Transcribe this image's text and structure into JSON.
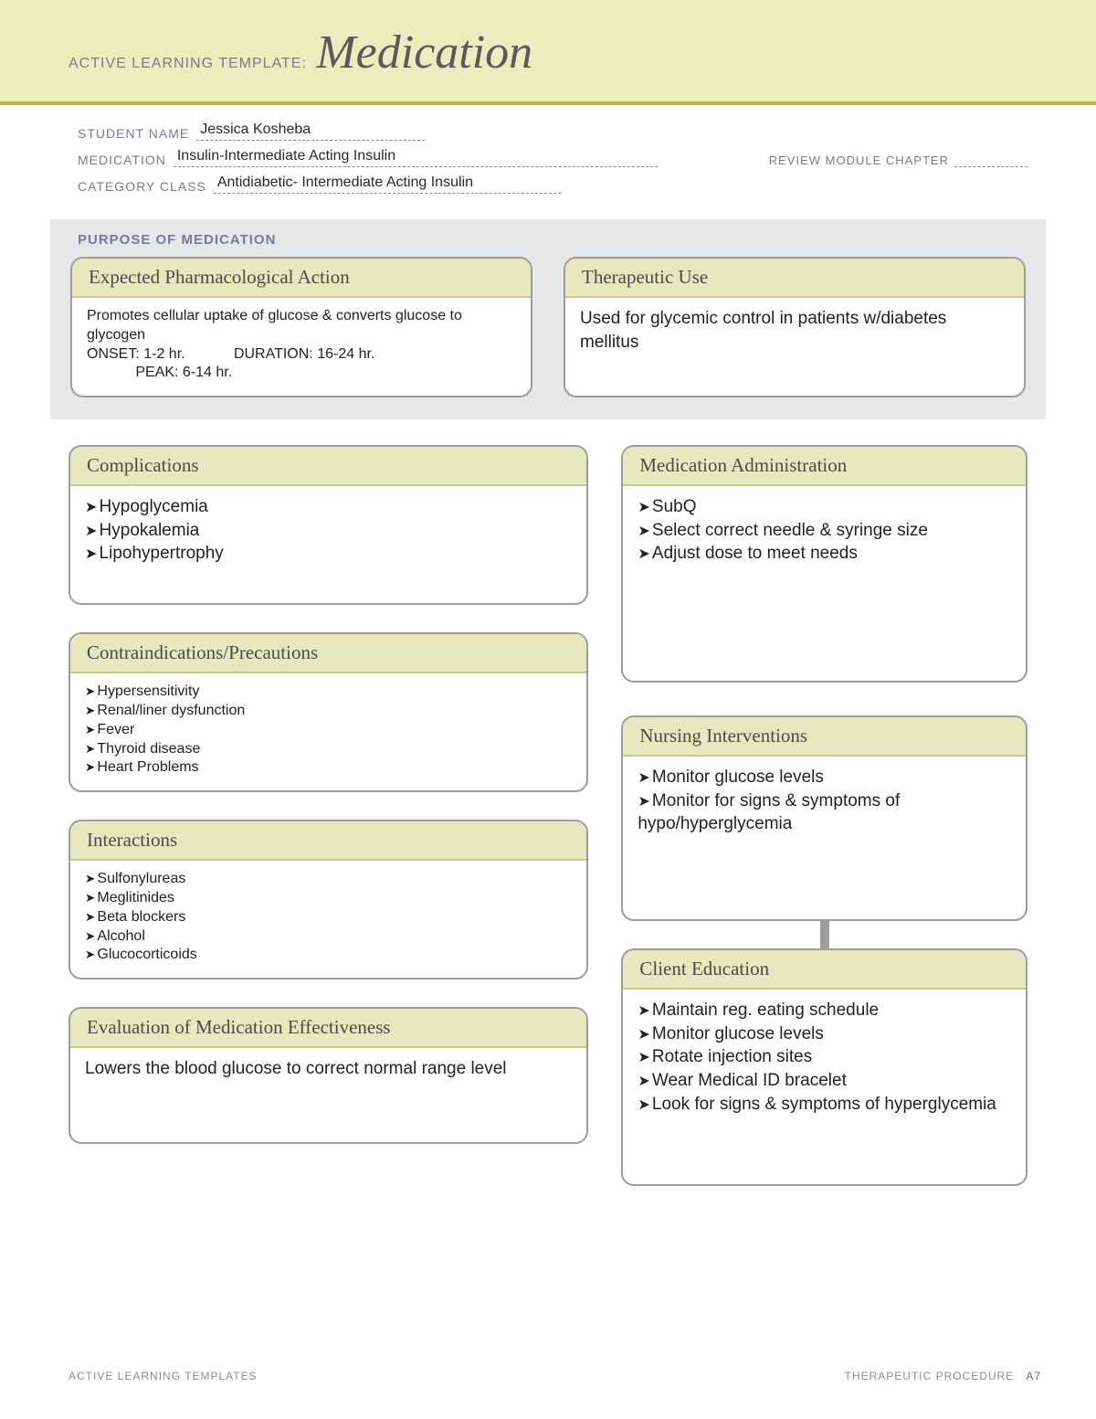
{
  "header": {
    "prefix": "ACTIVE LEARNING TEMPLATE:",
    "title": "Medication"
  },
  "meta": {
    "student_label": "STUDENT NAME",
    "student_value": "Jessica Kosheba",
    "medication_label": "MEDICATION",
    "medication_value": "Insulin-Intermediate Acting Insulin",
    "review_label": "REVIEW MODULE CHAPTER",
    "category_label": "CATEGORY CLASS",
    "category_value": "Antidiabetic- Intermediate Acting Insulin"
  },
  "purpose": {
    "section_title": "PURPOSE OF MEDICATION",
    "pharm": {
      "title": "Expected Pharmacological Action",
      "line1": "Promotes cellular uptake of glucose & converts glucose to glycogen",
      "line2": "ONSET: 1-2 hr.            DURATION: 16-24 hr.",
      "line3": "            PEAK: 6-14 hr."
    },
    "therapeutic": {
      "title": "Therapeutic Use",
      "text": "Used for glycemic control in patients w/diabetes mellitus"
    }
  },
  "complications": {
    "title": "Complications",
    "items": [
      "Hypoglycemia",
      "Hypokalemia",
      "Lipohypertrophy"
    ]
  },
  "administration": {
    "title": "Medication Administration",
    "items": [
      "SubQ",
      "Select correct needle & syringe size",
      "Adjust dose to meet needs"
    ]
  },
  "contra": {
    "title": "Contraindications/Precautions",
    "items": [
      "Hypersensitivity",
      "Renal/liner dysfunction",
      "Fever",
      "Thyroid disease",
      "Heart Problems"
    ]
  },
  "nursing": {
    "title": "Nursing Interventions",
    "items": [
      "Monitor glucose levels",
      "Monitor for signs & symptoms of hypo/hyperglycemia"
    ]
  },
  "interactions": {
    "title": "Interactions",
    "items": [
      "Sulfonylureas",
      "Meglitinides",
      "Beta blockers",
      "Alcohol",
      "Glucocorticoids"
    ]
  },
  "education": {
    "title": "Client Education",
    "items": [
      "Maintain reg. eating schedule",
      "Monitor glucose levels",
      "Rotate injection sites",
      "Wear Medical ID bracelet",
      "Look for signs & symptoms of hyperglycemia"
    ]
  },
  "evaluation": {
    "title": "Evaluation of Medication Effectiveness",
    "text": "Lowers the blood glucose to correct normal range level"
  },
  "footer": {
    "left": "ACTIVE LEARNING TEMPLATES",
    "right": "THERAPEUTIC PROCEDURE",
    "page": "A7"
  },
  "colors": {
    "band": "#ecedbf",
    "accent": "#b5b84d",
    "card_head": "#e7e8bd",
    "card_border": "#9c9c9c",
    "purpose_bg": "#e6e7e9",
    "label_text": "#7a7a92"
  }
}
